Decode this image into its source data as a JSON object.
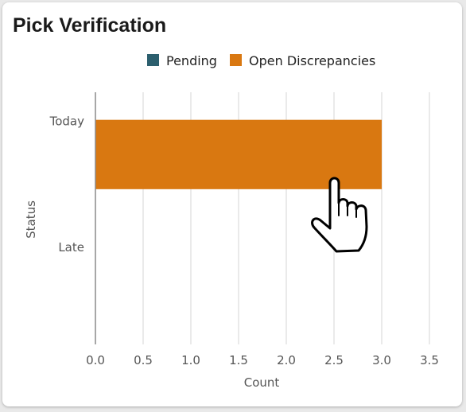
{
  "card": {
    "title": "Pick Verification"
  },
  "chart_data": {
    "type": "bar",
    "orientation": "horizontal",
    "stacked": true,
    "categories": [
      "Today",
      "Late"
    ],
    "series": [
      {
        "name": "Pending",
        "color": "#2c5f6e",
        "values": [
          0,
          0
        ]
      },
      {
        "name": "Open Discrepancies",
        "color": "#d97811",
        "values": [
          3,
          0
        ]
      }
    ],
    "xlabel": "Count",
    "ylabel": "Status",
    "xlim": [
      0,
      3.5
    ],
    "xticks": [
      "0.0",
      "0.5",
      "1.0",
      "1.5",
      "2.0",
      "2.5",
      "3.0",
      "3.5"
    ],
    "grid": true,
    "legend_position": "top"
  },
  "cursor": {
    "icon": "hand-pointer-icon"
  }
}
